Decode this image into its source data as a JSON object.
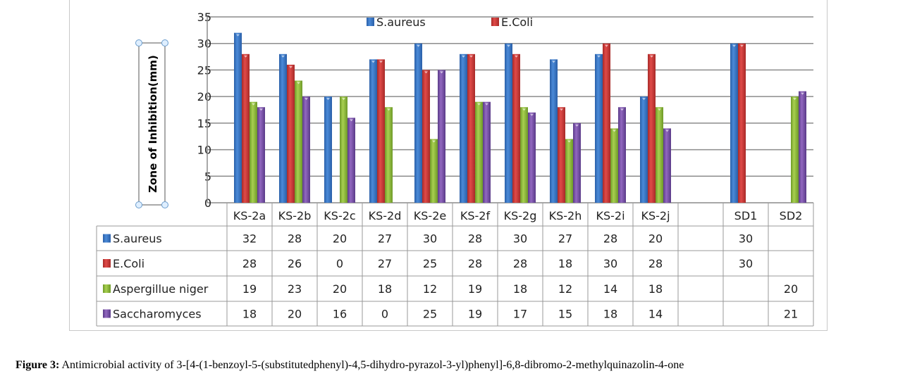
{
  "chart_data": {
    "type": "bar",
    "title": "",
    "xlabel": "",
    "ylabel": "Zone of Inhibition(mm)",
    "ylim": [
      0,
      35
    ],
    "yticks": [
      0,
      5,
      10,
      15,
      20,
      25,
      30,
      35
    ],
    "grid": true,
    "legend_position": "top",
    "categories": [
      "KS-2a",
      "KS-2b",
      "KS-2c",
      "KS-2d",
      "KS-2e",
      "KS-2f",
      "KS-2g",
      "KS-2h",
      "KS-2i",
      "KS-2j",
      "",
      "SD1",
      "SD2"
    ],
    "series": [
      {
        "name": "S.aureus",
        "color": "#3a78c8",
        "values": [
          32,
          28,
          20,
          27,
          30,
          28,
          30,
          27,
          28,
          20,
          null,
          30,
          null
        ]
      },
      {
        "name": "E.Coli",
        "color": "#d03a38",
        "values": [
          28,
          26,
          0,
          27,
          25,
          28,
          28,
          18,
          30,
          28,
          null,
          30,
          null
        ]
      },
      {
        "name": "Aspergillue niger",
        "color": "#93c03e",
        "values": [
          19,
          23,
          20,
          18,
          12,
          19,
          18,
          12,
          14,
          18,
          null,
          null,
          20
        ]
      },
      {
        "name": "Saccharomyces",
        "color": "#7d55a8",
        "values": [
          18,
          20,
          16,
          0,
          25,
          19,
          17,
          15,
          18,
          14,
          null,
          null,
          21
        ]
      }
    ],
    "legend_shown": [
      "S.aureus",
      "E.Coli"
    ]
  },
  "caption": {
    "label": "Figure 3:",
    "text": " Antimicrobial activity of 3-[4-(1-benzoyl-5-(substitutedphenyl)-4,5-dihydro-pyrazol-3-yl)phenyl]-6,8-dibromo-2-methylquinazolin-4-one"
  }
}
